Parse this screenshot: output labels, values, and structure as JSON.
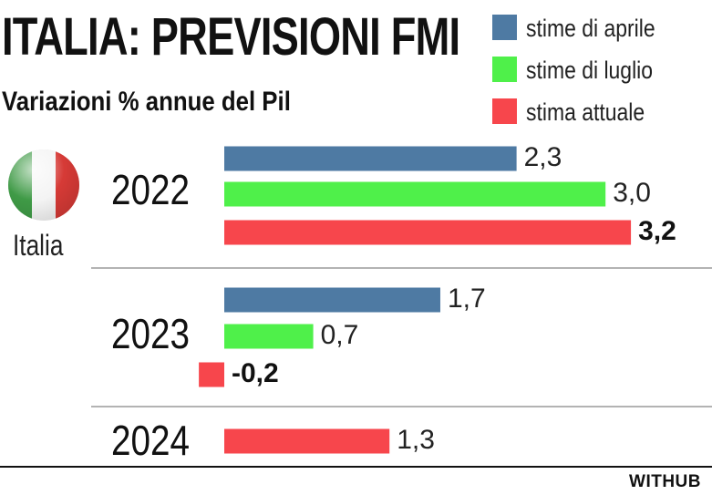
{
  "title": "ITALIA: PREVISIONI FMI",
  "subtitle": "Variazioni % annue del Pil",
  "country": "Italia",
  "brand": "WITHUB",
  "flag_colors": [
    "#3f9a46",
    "#f4f4f4",
    "#d63a36"
  ],
  "chart_data": {
    "type": "bar",
    "orientation": "horizontal",
    "title": "ITALIA: PREVISIONI FMI",
    "subtitle": "Variazioni % annue del Pil",
    "legend_position": "top-right",
    "grid": false,
    "xlim": [
      -0.2,
      3.2
    ],
    "categories": [
      "2022",
      "2023",
      "2024"
    ],
    "series": [
      {
        "name": "stime di aprile",
        "color": "#4e7aa3",
        "values": [
          2.3,
          1.7,
          null
        ],
        "labels": [
          "2,3",
          "1,7",
          ""
        ]
      },
      {
        "name": "stime di luglio",
        "color": "#4ff04a",
        "values": [
          3.0,
          0.7,
          null
        ],
        "labels": [
          "3,0",
          "0,7",
          ""
        ]
      },
      {
        "name": "stima attuale",
        "color": "#f7464c",
        "values": [
          3.2,
          -0.2,
          1.3
        ],
        "labels": [
          "3,2",
          "-0,2",
          "1,3"
        ],
        "bold_labels": [
          true,
          true,
          false
        ]
      }
    ]
  }
}
